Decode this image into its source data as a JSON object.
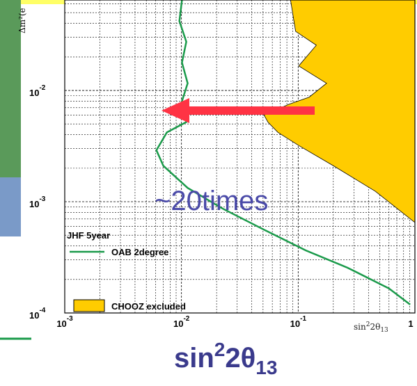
{
  "chart_data": {
    "type": "line",
    "xscale": "log",
    "yscale": "log",
    "grid": true,
    "y_label": "Δm²(e",
    "x_label": {
      "base": "sin",
      "sup": "2",
      "mid": "2θ",
      "sub": "13"
    },
    "title": {
      "base": "sin",
      "sup": "2",
      "mid": "2θ",
      "sub": "13"
    },
    "annotation": "~20times",
    "legend_title": "JHF 5year",
    "xlim": [
      0.001,
      1
    ],
    "ylim": [
      0.0001,
      0.065
    ],
    "xticks": [
      {
        "value": 0.001,
        "label": "10",
        "sup": "-3"
      },
      {
        "value": 0.01,
        "label": "10",
        "sup": "-2"
      },
      {
        "value": 0.1,
        "label": "10",
        "sup": "-1"
      },
      1
    ],
    "yticks": [
      {
        "value": 0.0001,
        "label": "10",
        "sup": "-4"
      },
      {
        "value": 0.001,
        "label": "10",
        "sup": "-3"
      },
      {
        "value": 0.01,
        "label": "10",
        "sup": "-2"
      }
    ],
    "series": [
      {
        "name": "OAB 2degree",
        "type": "line",
        "color": "#1a9a4a",
        "x": [
          0.0101,
          0.0096,
          0.011,
          0.0101,
          0.0113,
          0.0099,
          0.011,
          0.0075,
          0.0061,
          0.007,
          0.0113,
          0.0224,
          0.051,
          0.116,
          0.265,
          0.6,
          0.91
        ],
        "values": [
          0.065,
          0.042,
          0.0274,
          0.0178,
          0.0116,
          0.0075,
          0.0052,
          0.0042,
          0.0029,
          0.0021,
          0.00133,
          0.00087,
          0.00056,
          0.000365,
          0.000255,
          0.000166,
          0.000119
        ]
      },
      {
        "name": "CHOOZ excluded",
        "type": "area",
        "color": "#ffcc00",
        "x": [
          0.086,
          0.095,
          0.143,
          0.101,
          0.175,
          0.124,
          0.083,
          0.051,
          0.055,
          0.067,
          0.101,
          0.201,
          0.458,
          1.0
        ],
        "values": [
          0.065,
          0.034,
          0.0255,
          0.0166,
          0.0116,
          0.0087,
          0.0075,
          0.006,
          0.0052,
          0.0042,
          0.0032,
          0.0021,
          0.00124,
          0.00065
        ]
      }
    ]
  }
}
